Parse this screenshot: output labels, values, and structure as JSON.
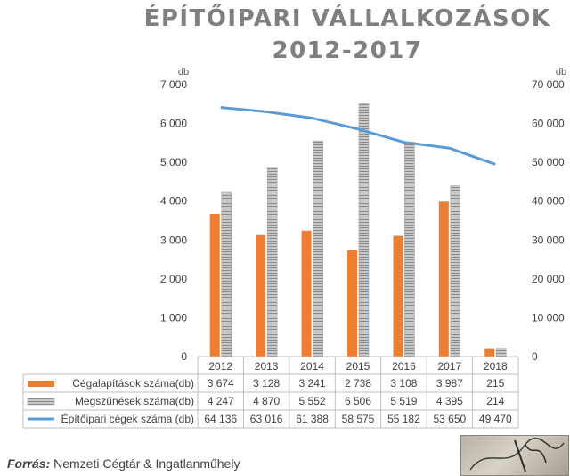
{
  "title_line1": "ÉPÍTŐIPARI VÁLLALKOZÁSOK",
  "title_line2": "2012-2017",
  "source_label": "Forrás:",
  "source_text": "Nemzeti Cégtár & Ingatlanműhely",
  "logo_text": "Ingatlan Műhely",
  "colors": {
    "founded": "#ed7d31",
    "closed": "#a5a5a5",
    "companies": "#5b9bd5",
    "title": "#7f7f7f"
  },
  "chart_data": {
    "type": "bar",
    "title": "ÉPÍTŐIPARI VÁLLALKOZÁSOK 2012-2017",
    "categories": [
      "2012",
      "2013",
      "2014",
      "2015",
      "2016",
      "2017",
      "2018"
    ],
    "y_left_unit": "db",
    "y_right_unit": "db",
    "y_left_ticks": [
      "0",
      "1 000",
      "2 000",
      "3 000",
      "4 000",
      "5 000",
      "6 000",
      "7 000"
    ],
    "y_right_ticks": [
      "0",
      "10 000",
      "20 000",
      "30 000",
      "40 000",
      "50 000",
      "60 000",
      "70 000"
    ],
    "ylim_left": [
      0,
      7000
    ],
    "ylim_right": [
      0,
      70000
    ],
    "series": [
      {
        "name": "Cégalapítások száma(db)",
        "type": "bar",
        "axis": "left",
        "values": [
          3674,
          3128,
          3241,
          2738,
          3108,
          3987,
          215
        ],
        "labels": [
          "3 674",
          "3 128",
          "3 241",
          "2 738",
          "3 108",
          "3 987",
          "215"
        ]
      },
      {
        "name": "Megszűnések száma(db)",
        "type": "bar",
        "axis": "left",
        "values": [
          4247,
          4870,
          5552,
          6506,
          5519,
          4395,
          214
        ],
        "labels": [
          "4 247",
          "4 870",
          "5 552",
          "6 506",
          "5 519",
          "4 395",
          "214"
        ]
      },
      {
        "name": "Építőipari cégek száma (db)",
        "type": "line",
        "axis": "right",
        "values": [
          64136,
          63016,
          61388,
          58575,
          55182,
          53650,
          49470
        ],
        "labels": [
          "64 136",
          "63 016",
          "61 388",
          "58 575",
          "55 182",
          "53 650",
          "49 470"
        ]
      }
    ],
    "legend": "data-table",
    "grid": false
  }
}
